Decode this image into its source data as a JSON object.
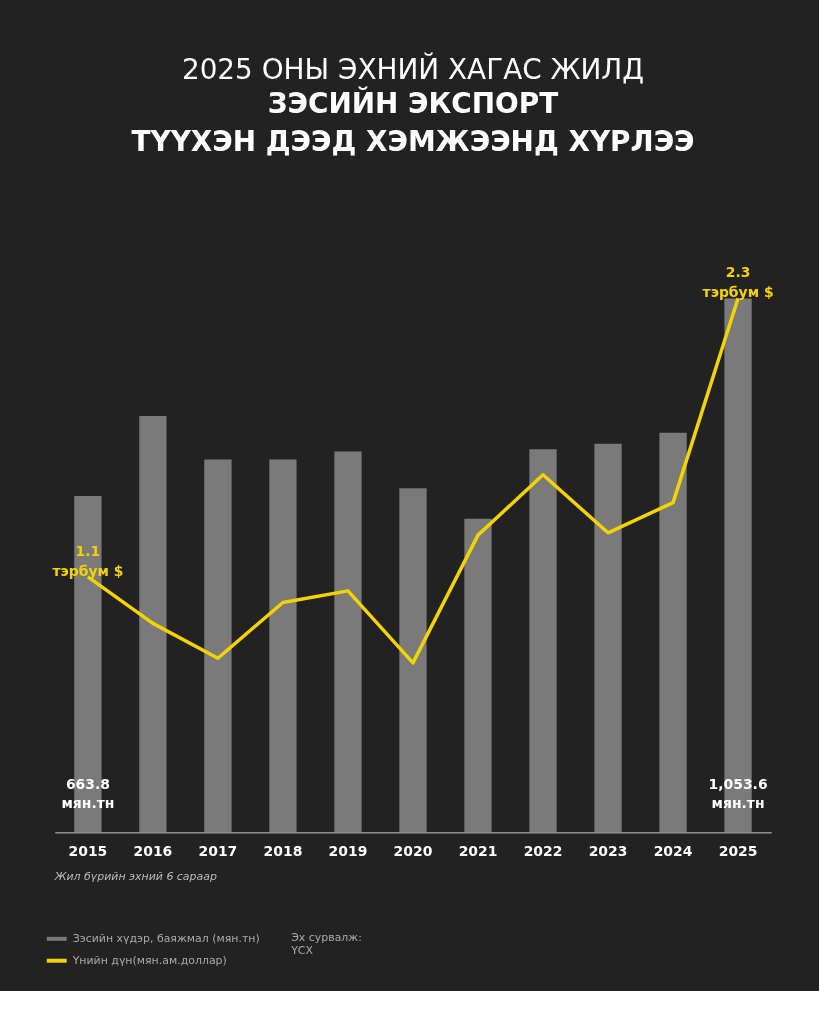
{
  "chart_data": {
    "type": "bar",
    "title": "2025 ОНЫ ЭХНИЙ ХАГАС ЖИЛД",
    "subtitle": "ЗЭСИЙН ЭКСПОРТ\nТҮҮХЭН ДЭЭД ХЭМЖЭЭНД ХҮРЛЭЭ",
    "categories": [
      "2015",
      "2016",
      "2017",
      "2018",
      "2019",
      "2020",
      "2021",
      "2022",
      "2023",
      "2024",
      "2025"
    ],
    "series": [
      {
        "name": "Зэсийн хүдэр, баяжмал (мян.тн)",
        "color": "#7a7a7a",
        "values": [
          663.8,
          822,
          736,
          736,
          752,
          679,
          619,
          756,
          767,
          789,
          1053.6
        ],
        "value_labels": [
          "663.8\nмян.тн",
          null,
          null,
          null,
          null,
          null,
          null,
          null,
          null,
          null,
          "1,053.6\nмян.тн"
        ]
      },
      {
        "name": "Үнийн дүн(мян.ам.доллар)",
        "type": "line",
        "axis": "y2",
        "color": "#f5d300",
        "values": [
          1.1,
          0.9,
          0.75,
          0.99,
          1.04,
          0.73,
          1.28,
          1.54,
          1.29,
          1.42,
          2.3
        ],
        "value_labels": [
          "1.1\nтэрбум $",
          null,
          null,
          null,
          null,
          null,
          null,
          null,
          null,
          null,
          "2.3\nтэрбум $"
        ]
      }
    ],
    "tick_labels": "x",
    "grid": false,
    "legend": "bottom left",
    "marker": "none",
    "line_style": "solid",
    "annotations": [
      "Жил бүрийн эхний 6 сараар",
      "Эх сурвалж:\nҮСХ"
    ]
  }
}
